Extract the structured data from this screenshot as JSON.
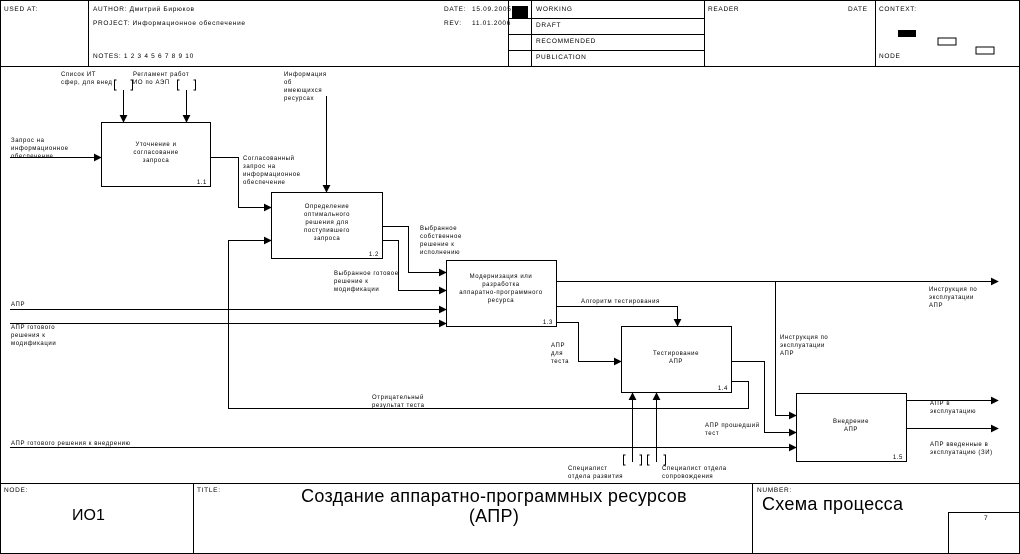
{
  "header": {
    "used_at": "USED AT:",
    "author": "AUTHOR: Дмитрий Бирюков",
    "project": "PROJECT: Информационное обеспечение",
    "notes": "NOTES: 1 2 3 4 5 6 7 8 9 10",
    "date_label": "DATE:",
    "date_value": "15.09.2005",
    "rev_label": "REV:",
    "rev_value": "11.01.2006",
    "working": "WORKING",
    "draft": "DRAFT",
    "recommended": "RECOMMENDED",
    "publication": "PUBLICATION",
    "reader": "READER",
    "reader_date": "DATE",
    "context": "CONTEXT:",
    "node_ref": "NODE"
  },
  "boxes": {
    "b1": {
      "title": "Уточнение и согласование запроса",
      "num": "1.1"
    },
    "b2": {
      "title": "Определение оптимального решения для поступившего запроса",
      "num": "1.2"
    },
    "b3": {
      "title": "Модернизация или разработка аппаратно-программного ресурса",
      "num": "1.3"
    },
    "b4": {
      "title": "Тестирование АПР",
      "num": "1.4"
    },
    "b5": {
      "title": "Внедрение АПР",
      "num": "1.5"
    }
  },
  "arrows": {
    "ctrl_spisok": "Список ИТ сфер, для внед",
    "ctrl_reglament": "Регламент работ ИО по АЭП",
    "ctrl_info": "Информация об имеющихся ресурсах",
    "in_zapros": "Запрос на информационное обеспечение",
    "soglas": "Согласованный запрос на информационное обеспечение",
    "vybrannoe": "Выбранное собственное решение к исполнению",
    "vybr_gotovoe": "Выбранное готовое решение к модификации",
    "algoritm": "Алгоритм тестирования",
    "apr_test": "АПР для теста",
    "instr_expl": "Инструкция по эксплуатации АПР",
    "instr_expl2": "Инструкция по эксплуатации АПР",
    "in_apr": "АПР",
    "in_apr_gotovoe": "АПР готового решения к модификации",
    "otr_rezultat": "Отрицательный результат теста",
    "apr_proshed": "АПР прошедший тест",
    "in_apr_gotovoe2": "АПР готового решения к внедрению",
    "apr_v_expl": "АПР в эксплуатацию",
    "apr_vveden": "АПР введенные в эксплуатацию (ЗИ)",
    "mech_spec1": "Специалист отдела развития",
    "mech_spec2": "Специалист отдела сопровождения"
  },
  "footer": {
    "node_label": "NODE:",
    "node_value": "ИО1",
    "title_label": "TITLE:",
    "title_line1": "Создание аппаратно-программных ресурсов",
    "title_line2": "(АПР)",
    "number_label": "NUMBER:",
    "number_value": "Схема процесса",
    "page": "7"
  }
}
